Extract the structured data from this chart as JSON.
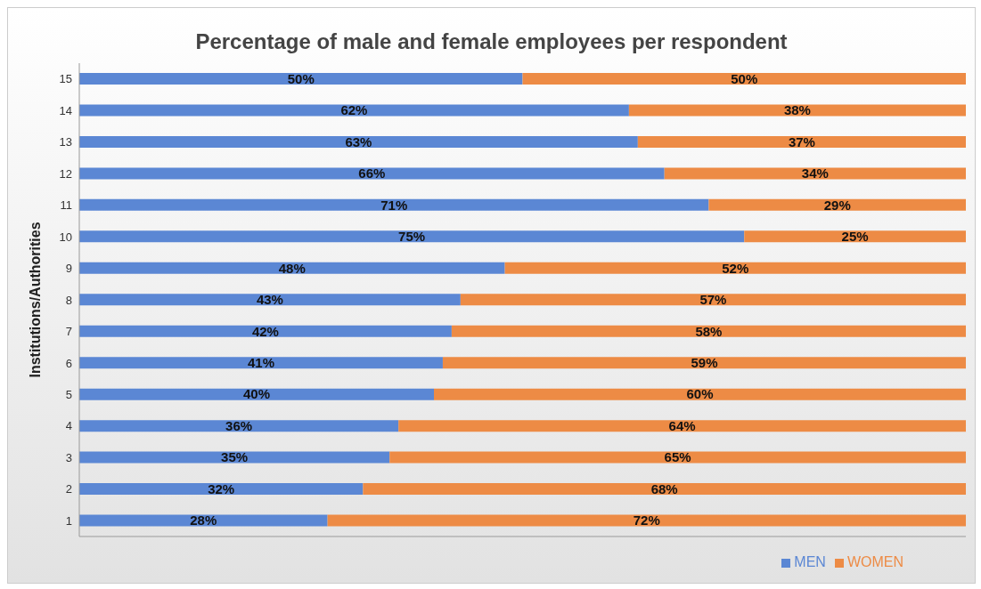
{
  "chart_data": {
    "type": "bar",
    "title": "Percentage of male and female employees per respondent",
    "ylabel": "Institutions/Authorities",
    "orientation": "horizontal",
    "stacked": true,
    "categories": [
      "15",
      "14",
      "13",
      "12",
      "11",
      "10",
      "9",
      "8",
      "7",
      "6",
      "5",
      "4",
      "3",
      "2",
      "1"
    ],
    "series": [
      {
        "name": "MEN",
        "color": "#5b87d4",
        "values": [
          50,
          62,
          63,
          66,
          71,
          75,
          48,
          43,
          42,
          41,
          40,
          36,
          35,
          32,
          28
        ],
        "value_labels": [
          "50%",
          "62%",
          "63%",
          "66%",
          "71%",
          "75%",
          "48%",
          "43%",
          "42%",
          "41%",
          "40%",
          "36%",
          "35%",
          "32%",
          "28%"
        ]
      },
      {
        "name": "WOMEN",
        "color": "#ed8b45",
        "values": [
          50,
          38,
          37,
          34,
          29,
          25,
          52,
          57,
          58,
          59,
          60,
          64,
          65,
          68,
          72
        ],
        "value_labels": [
          "50%",
          "38%",
          "37%",
          "34%",
          "29%",
          "25%",
          "52%",
          "57%",
          "58%",
          "59%",
          "60%",
          "64%",
          "65%",
          "68%",
          "72%"
        ]
      }
    ],
    "xlim": [
      0,
      100
    ],
    "tick_labels": "y",
    "grid": false,
    "legend": "bottom right"
  }
}
